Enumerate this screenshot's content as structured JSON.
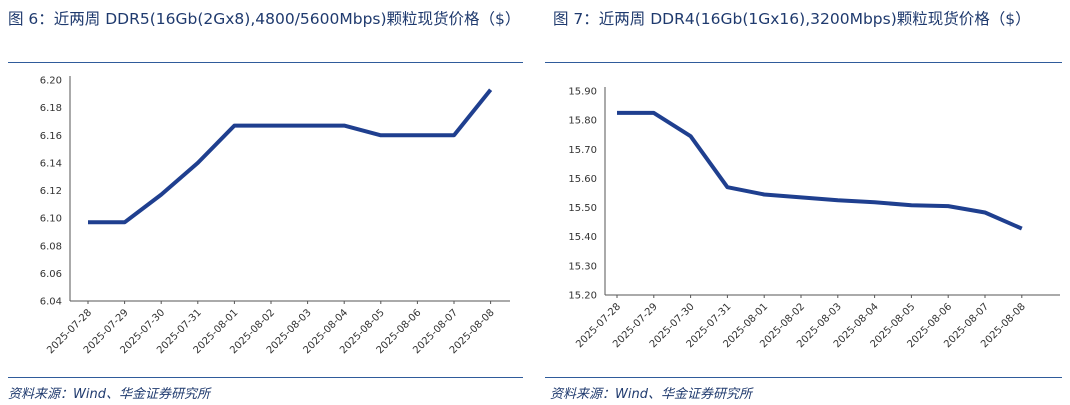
{
  "charts": [
    {
      "figure_title": "图 6：近两周 DDR5(16Gb(2Gx8),4800/5600Mbps)颗粒现货价格（$）",
      "source": "资料来源：Wind、华金证券研究所"
    },
    {
      "figure_title": "图 7：近两周 DDR4(16Gb(1Gx16),3200Mbps)颗粒现货价格（$）",
      "source": "资料来源：Wind、华金证券研究所"
    }
  ],
  "colors": {
    "line": "#1f3f8f",
    "axis": "#555555",
    "text": "#1f3a6e"
  },
  "chart_data": [
    {
      "type": "line",
      "title": "图 6：近两周 DDR5(16Gb(2Gx8),4800/5600Mbps)颗粒现货价格（$）",
      "categories": [
        "2025-07-28",
        "2025-07-29",
        "2025-07-30",
        "2025-07-31",
        "2025-08-01",
        "2025-08-02",
        "2025-08-03",
        "2025-08-04",
        "2025-08-05",
        "2025-08-06",
        "2025-08-07",
        "2025-08-08"
      ],
      "series": [
        {
          "values": [
            6.097,
            6.097,
            6.117,
            6.14,
            6.167,
            6.167,
            6.167,
            6.167,
            6.16,
            6.16,
            6.16,
            6.193
          ]
        }
      ],
      "ylim": [
        6.04,
        6.2
      ],
      "yticks": [
        "6.04",
        "6.06",
        "6.08",
        "6.10",
        "6.12",
        "6.14",
        "6.16",
        "6.18",
        "6.20"
      ],
      "grid": false,
      "legend": "none",
      "xlabel": "",
      "ylabel": ""
    },
    {
      "type": "line",
      "title": "图 7：近两周 DDR4(16Gb(1Gx16),3200Mbps)颗粒现货价格（$）",
      "categories": [
        "2025-07-28",
        "2025-07-29",
        "2025-07-30",
        "2025-07-31",
        "2025-08-01",
        "2025-08-02",
        "2025-08-03",
        "2025-08-04",
        "2025-08-05",
        "2025-08-06",
        "2025-08-07",
        "2025-08-08"
      ],
      "series": [
        {
          "values": [
            15.825,
            15.825,
            15.745,
            15.57,
            15.545,
            15.535,
            15.525,
            15.518,
            15.508,
            15.505,
            15.483,
            15.428
          ]
        }
      ],
      "ylim": [
        15.2,
        15.9
      ],
      "yticks": [
        "15.20",
        "15.30",
        "15.40",
        "15.50",
        "15.60",
        "15.70",
        "15.80",
        "15.90"
      ],
      "grid": false,
      "legend": "none",
      "xlabel": "",
      "ylabel": ""
    }
  ]
}
